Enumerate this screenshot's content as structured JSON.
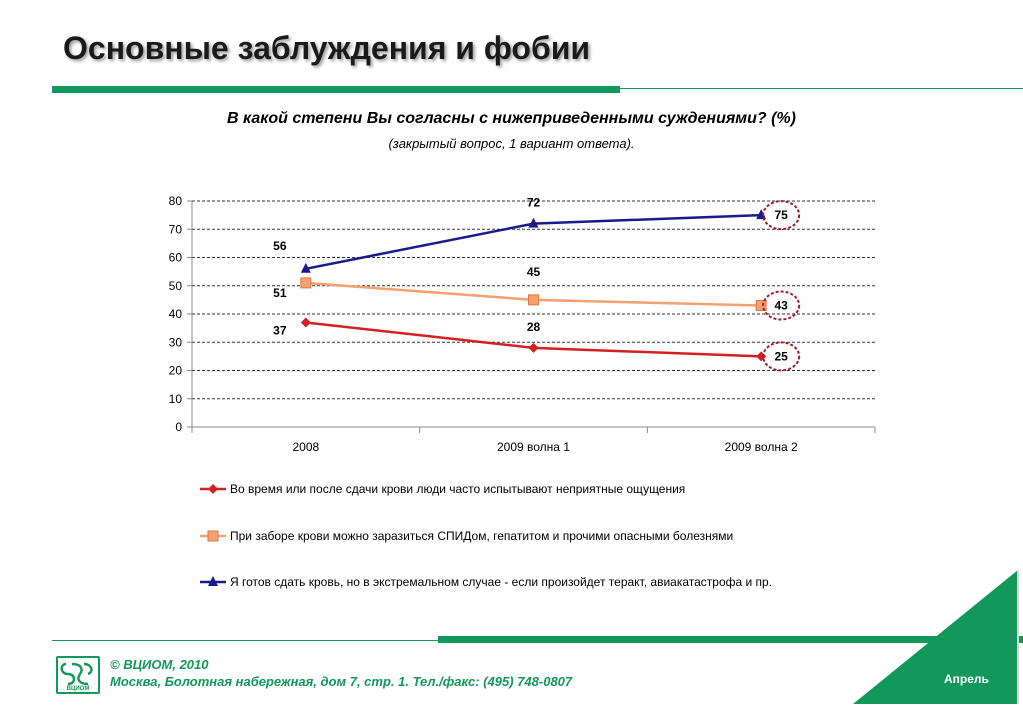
{
  "header": {
    "title": "Основные заблуждения и фобии",
    "question": "В какой степени Вы согласны с нижеприведенными суждениями? (%)",
    "note": "(закрытый вопрос, 1 вариант ответа)."
  },
  "chart_data": {
    "type": "line",
    "categories": [
      "2008",
      "2009 волна 1",
      "2009 волна 2"
    ],
    "ylim": [
      0,
      80
    ],
    "yticks": [
      "0",
      "10",
      "20",
      "30",
      "40",
      "50",
      "60",
      "70",
      "80"
    ],
    "grid": true,
    "legend_position": "bottom",
    "series": [
      {
        "name": "Во время или после сдачи крови люди часто испытывают неприятные ощущения",
        "values": [
          37,
          28,
          25
        ],
        "labels": [
          "37",
          "28",
          "25"
        ],
        "color": "#d42020",
        "marker": "diamond"
      },
      {
        "name": "При заборе крови можно заразиться СПИДом, гепатитом и прочими опасными болезнями",
        "values": [
          51,
          45,
          43
        ],
        "labels": [
          "51",
          "45",
          "43"
        ],
        "color": "#f4a070",
        "marker": "square"
      },
      {
        "name": "Я готов сдать кровь, но в экстремальном случае - если произойдет теракт, авиакатастрофа и пр.",
        "values": [
          56,
          72,
          75
        ],
        "labels": [
          "56",
          "72",
          "75"
        ],
        "color": "#1a1a8c",
        "marker": "triangle"
      }
    ],
    "annotation_color": "#a01c2c"
  },
  "footer": {
    "copyright": "© ВЦИОМ, 2010",
    "address": "Москва, Болотная набережная, дом 7, стр. 1.  Тел./факс: (495) 748-0807",
    "month": "Апрель",
    "logo_text": "ВЦИОМ",
    "brand_color": "#12985a"
  }
}
